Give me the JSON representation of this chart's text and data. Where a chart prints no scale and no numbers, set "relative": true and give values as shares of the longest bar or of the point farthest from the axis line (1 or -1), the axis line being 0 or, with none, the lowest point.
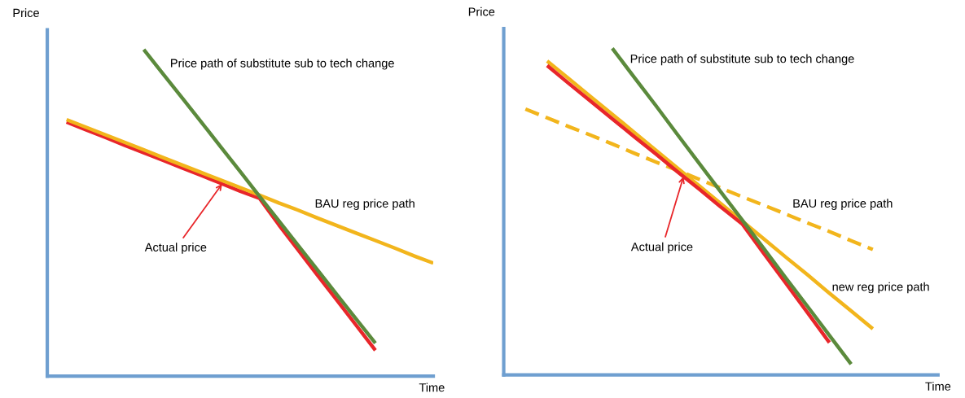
{
  "chart_data": [
    {
      "type": "line",
      "relative": true,
      "xlabel": "Time",
      "ylabel": "Price",
      "annotations": [
        "Actual price"
      ],
      "categories": [
        null,
        null,
        null,
        null,
        null,
        null,
        null,
        null,
        null,
        null,
        null,
        null,
        null,
        null,
        null,
        null,
        null,
        null,
        null,
        null,
        null
      ],
      "series": [
        {
          "color": "#e8262a",
          "values": [
            null,
            0.778,
            0.754,
            0.731,
            0.707,
            0.684,
            0.661,
            0.637,
            0.614,
            0.59,
            0.566,
            0.544,
            0.463,
            0.386,
            0.309,
            0.233,
            0.156,
            0.079,
            null,
            null,
            null
          ]
        },
        {
          "name": "BAU reg price path",
          "color": "#f2b51c",
          "values": [
            null,
            0.785,
            0.762,
            0.739,
            0.716,
            0.693,
            0.669,
            0.646,
            0.623,
            0.6,
            0.577,
            0.554,
            0.53,
            0.508,
            0.484,
            0.461,
            0.438,
            0.415,
            0.392,
            0.368,
            0.346
          ]
        },
        {
          "name": "Price path of substitute sub to tech change",
          "color": "#5b8a3c",
          "values": [
            null,
            null,
            null,
            null,
            null,
            1.0,
            0.925,
            0.851,
            0.776,
            0.701,
            0.626,
            0.55,
            0.475,
            0.4,
            0.325,
            0.25,
            0.175,
            0.101,
            null,
            null,
            null
          ]
        }
      ]
    },
    {
      "type": "line",
      "relative": true,
      "xlabel": "Time",
      "ylabel": "Price",
      "annotations": [
        "Actual price"
      ],
      "categories": [
        null,
        null,
        null,
        null,
        null,
        null,
        null,
        null,
        null,
        null,
        null,
        null,
        null,
        null,
        null,
        null,
        null,
        null,
        null,
        null,
        null
      ],
      "series": [
        {
          "name": "BAU reg price path",
          "color": "#f2b51c",
          "line_style": "dashed",
          "values": [
            null,
            0.814,
            0.787,
            0.76,
            0.734,
            0.707,
            0.679,
            0.652,
            0.626,
            0.599,
            0.572,
            0.545,
            0.519,
            0.492,
            0.465,
            0.439,
            0.411,
            0.384,
            null,
            null,
            null
          ]
        },
        {
          "name": "new reg price path",
          "color": "#f2b51c",
          "values": [
            null,
            null,
            0.961,
            0.907,
            0.852,
            0.798,
            0.743,
            0.688,
            0.633,
            0.579,
            0.524,
            0.47,
            0.415,
            0.36,
            0.306,
            0.25,
            0.196,
            0.141,
            null,
            null,
            null
          ]
        },
        {
          "color": "#e8262a",
          "values": [
            null,
            null,
            0.947,
            0.892,
            0.838,
            0.784,
            0.73,
            0.677,
            0.622,
            0.569,
            0.514,
            0.461,
            0.37,
            0.28,
            0.19,
            0.099,
            null,
            null,
            null,
            null,
            null
          ]
        },
        {
          "name": "Price path of substitute sub to tech change",
          "color": "#5b8a3c",
          "values": [
            null,
            null,
            null,
            null,
            null,
            1.0,
            0.912,
            0.825,
            0.736,
            0.648,
            0.56,
            0.473,
            0.385,
            0.296,
            0.209,
            0.121,
            0.033,
            null,
            null,
            null,
            null
          ]
        }
      ]
    }
  ]
}
